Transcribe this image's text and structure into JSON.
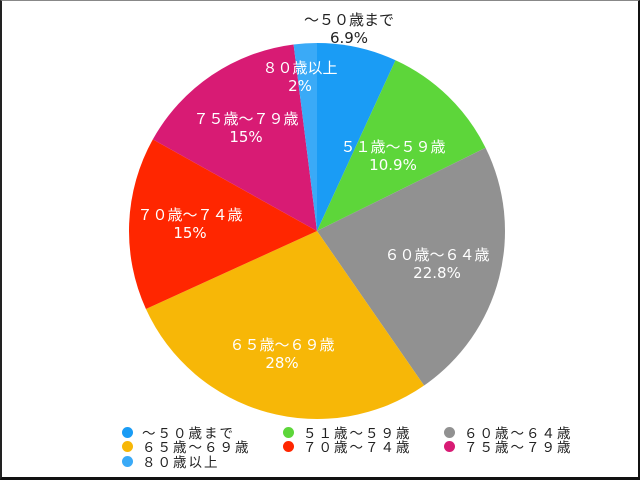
{
  "chart_data": {
    "type": "pie",
    "title": "",
    "start_angle_deg": 0,
    "direction": "clockwise",
    "categories": [
      "～５０歳まで",
      "５１歳～５９歳",
      "６０歳～６４歳",
      "６５歳～６９歳",
      "７０歳～７４歳",
      "７５歳～７９歳",
      "８０歳以上"
    ],
    "values": [
      6.9,
      10.9,
      22.8,
      28,
      15,
      15,
      2
    ],
    "value_labels": [
      "6.9%",
      "10.9%",
      "22.8%",
      "28%",
      "15%",
      "15%",
      "2%"
    ],
    "colors": [
      "#1a9cf5",
      "#5dd63a",
      "#919191",
      "#f7b707",
      "#ff2600",
      "#d81b74",
      "#3aaaf7"
    ],
    "legend_position": "bottom"
  },
  "slices": [
    {
      "label": "～５０歳まで",
      "pct": "6.9%",
      "value": 6.9,
      "color": "#1a9cf5",
      "label_outside": true
    },
    {
      "label": "５１歳～５９歳",
      "pct": "10.9%",
      "value": 10.9,
      "color": "#5dd63a"
    },
    {
      "label": "６０歳～６４歳",
      "pct": "22.8%",
      "value": 22.8,
      "color": "#919191"
    },
    {
      "label": "６５歳～６９歳",
      "pct": "28%",
      "value": 28,
      "color": "#f7b707"
    },
    {
      "label": "７０歳～７４歳",
      "pct": "15%",
      "value": 15,
      "color": "#ff2600"
    },
    {
      "label": "７５歳～７９歳",
      "pct": "15%",
      "value": 15,
      "color": "#d81b74"
    },
    {
      "label": "８０歳以上",
      "pct": "2%",
      "value": 2,
      "color": "#3aaaf7"
    }
  ],
  "legend": {
    "items": [
      {
        "label": "～５０歳まで",
        "color": "#1a9cf5"
      },
      {
        "label": "５１歳～５９歳",
        "color": "#5dd63a"
      },
      {
        "label": "６０歳～６４歳",
        "color": "#919191"
      },
      {
        "label": "６５歳～６９歳",
        "color": "#f7b707"
      },
      {
        "label": "７０歳～７４歳",
        "color": "#ff2600"
      },
      {
        "label": "７５歳～７９歳",
        "color": "#d81b74"
      },
      {
        "label": "８０歳以上",
        "color": "#3aaaf7"
      }
    ]
  }
}
